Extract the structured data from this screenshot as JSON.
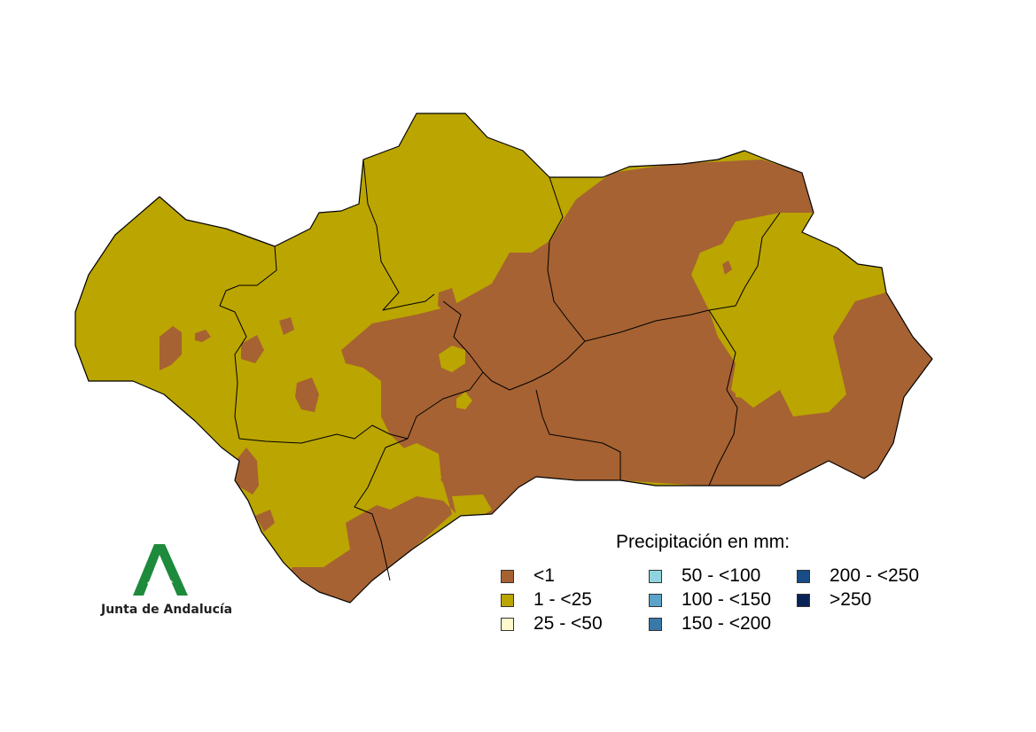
{
  "legend": {
    "title": "Precipitación en mm:",
    "classes": [
      {
        "label": "<1",
        "color": "#A66232"
      },
      {
        "label": "1 - <25",
        "color": "#BBA500"
      },
      {
        "label": "25 - <50",
        "color": "#FFF8CC"
      },
      {
        "label": "50 - <100",
        "color": "#8FD3E0"
      },
      {
        "label": "100 - <150",
        "color": "#5BA3CC"
      },
      {
        "label": "150 - <200",
        "color": "#3A78A8"
      },
      {
        "label": "200 - <250",
        "color": "#174C87"
      },
      {
        "label": ">250",
        "color": "#0A2357"
      }
    ]
  },
  "logo": {
    "text": "Junta de Andalucía",
    "color": "#1E8A3B",
    "icon": "junta-de-andalucia-logo"
  },
  "map": {
    "region_fill_color": "#BBA500",
    "dry_fill_color": "#A66232"
  }
}
